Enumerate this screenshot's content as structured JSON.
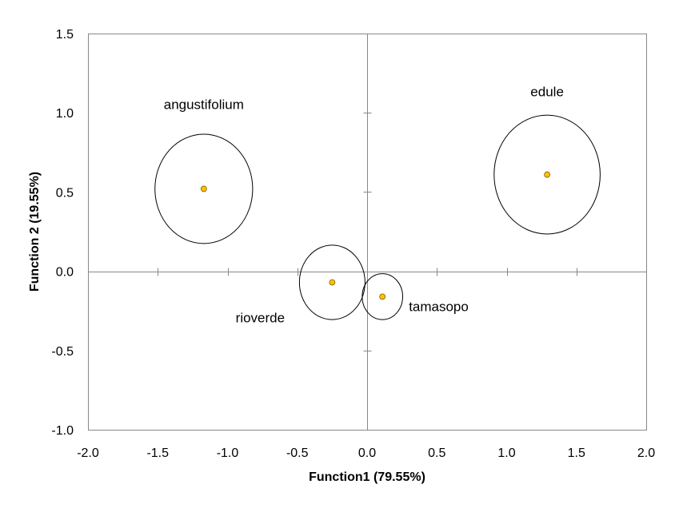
{
  "chart_data": {
    "type": "scatter",
    "xlabel": "Function1  (79.55%)",
    "ylabel": "Function 2 (19.55%)",
    "xlim": [
      -2.0,
      2.0
    ],
    "ylim": [
      -1.0,
      1.5
    ],
    "x_ticks": [
      -2.0,
      -1.5,
      -1.0,
      -0.5,
      0.0,
      0.5,
      1.0,
      1.5,
      2.0
    ],
    "y_ticks": [
      -1.0,
      -0.5,
      0.0,
      0.5,
      1.0,
      1.5
    ],
    "x_tick_labels": [
      "-2.0",
      "-1.5",
      "-1.0",
      "-0.5",
      "0.0",
      "0.5",
      "1.0",
      "1.5",
      "2.0"
    ],
    "y_tick_labels": [
      "-1.0",
      "-0.5",
      "0.0",
      "0.5",
      "1.0",
      "1.5"
    ],
    "grid": false,
    "point_color": "#FFC000",
    "points": [
      {
        "label": "angustifolium",
        "x": -1.17,
        "y": 0.52,
        "rx": 0.35,
        "ry": 0.345
      },
      {
        "label": "edule",
        "x": 1.29,
        "y": 0.61,
        "rx": 0.38,
        "ry": 0.375
      },
      {
        "label": "rioverde",
        "x": -0.25,
        "y": -0.07,
        "rx": 0.235,
        "ry": 0.235
      },
      {
        "label": "tamasopo",
        "x": 0.11,
        "y": -0.16,
        "rx": 0.145,
        "ry": 0.145
      }
    ]
  }
}
